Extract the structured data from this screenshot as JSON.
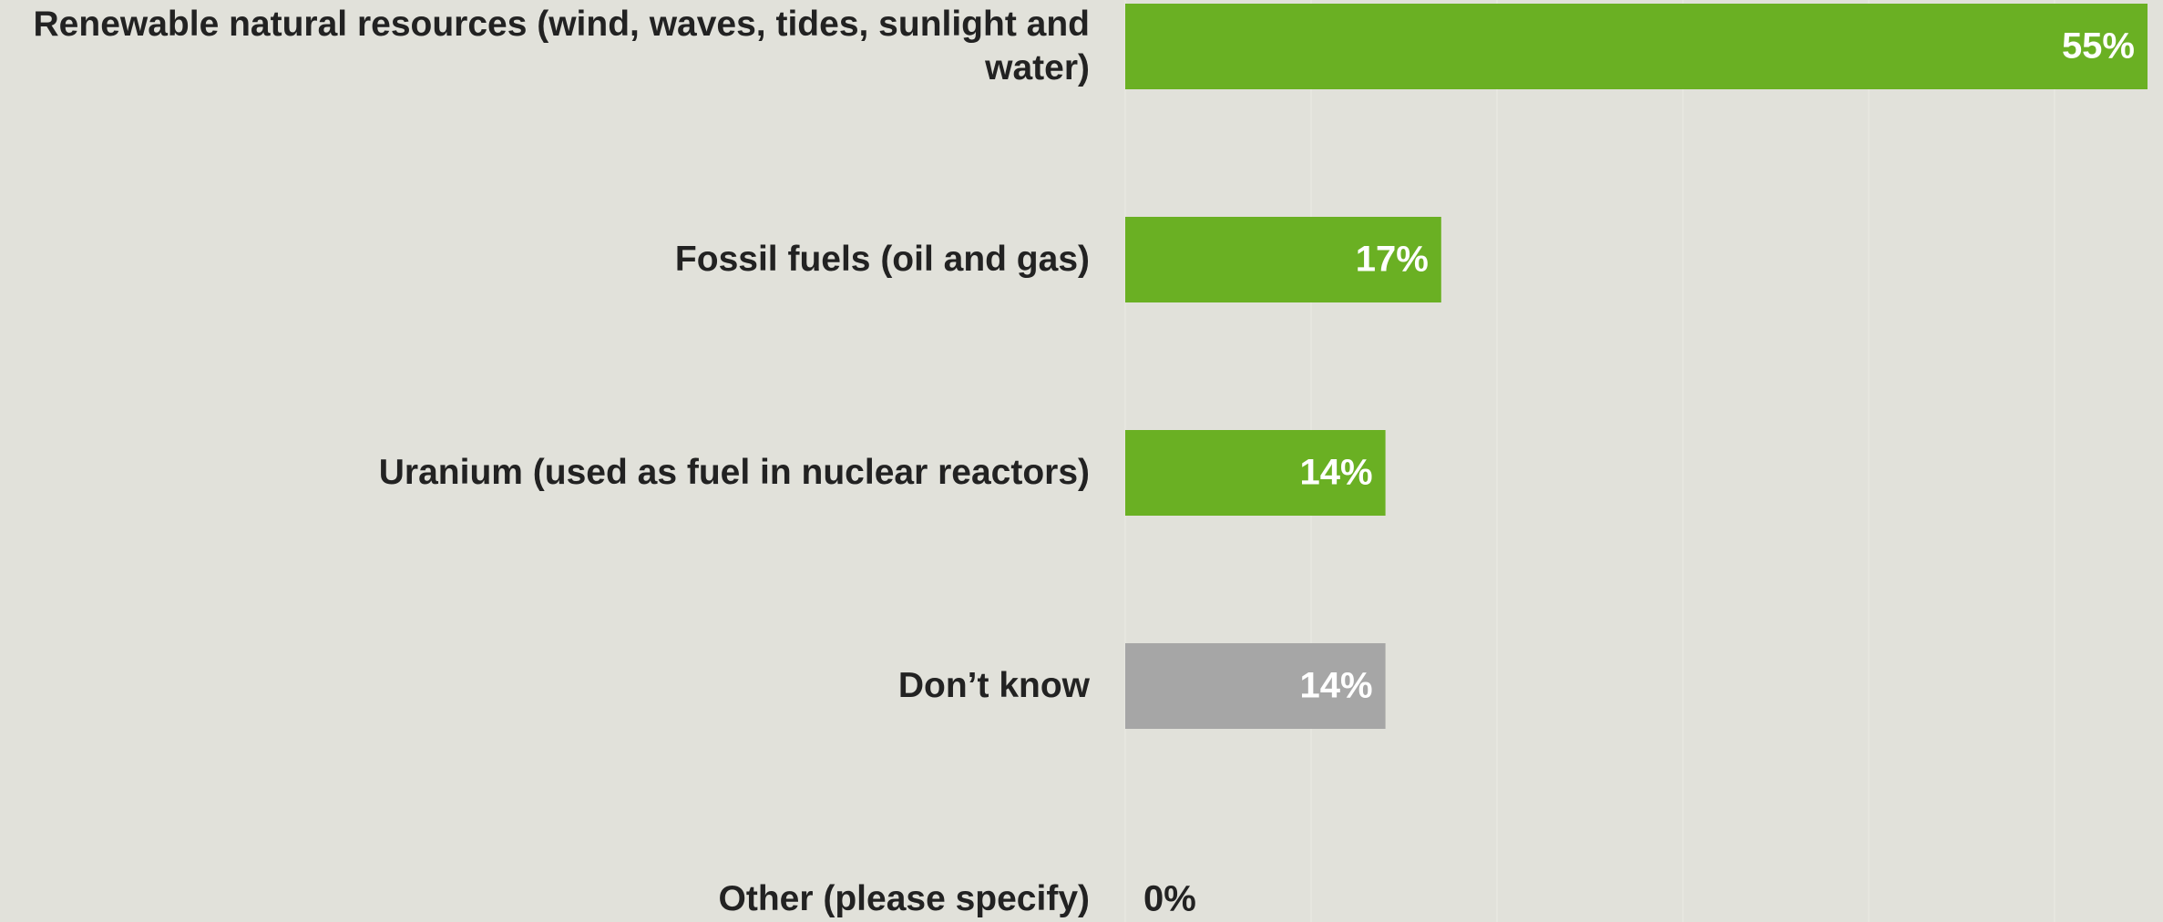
{
  "chart_data": {
    "type": "hbar",
    "categories": [
      "Renewable natural resources (wind, waves, tides, sunlight and water)",
      "Fossil fuels (oil and gas)",
      "Uranium (used as fuel in nuclear reactors)",
      "Don’t know",
      "Other (please specify)"
    ],
    "values": [
      55,
      17,
      14,
      14,
      0
    ],
    "value_labels": [
      "55%",
      "17%",
      "14%",
      "14%",
      "0%"
    ],
    "colors": [
      "#6ab023",
      "#6ab023",
      "#6ab023",
      "#a6a6a6",
      "#6ab023"
    ],
    "xlim": [
      0,
      55
    ],
    "xticks": [
      0,
      10,
      20,
      30,
      40,
      50
    ],
    "grid": true,
    "tick_labels": false
  }
}
